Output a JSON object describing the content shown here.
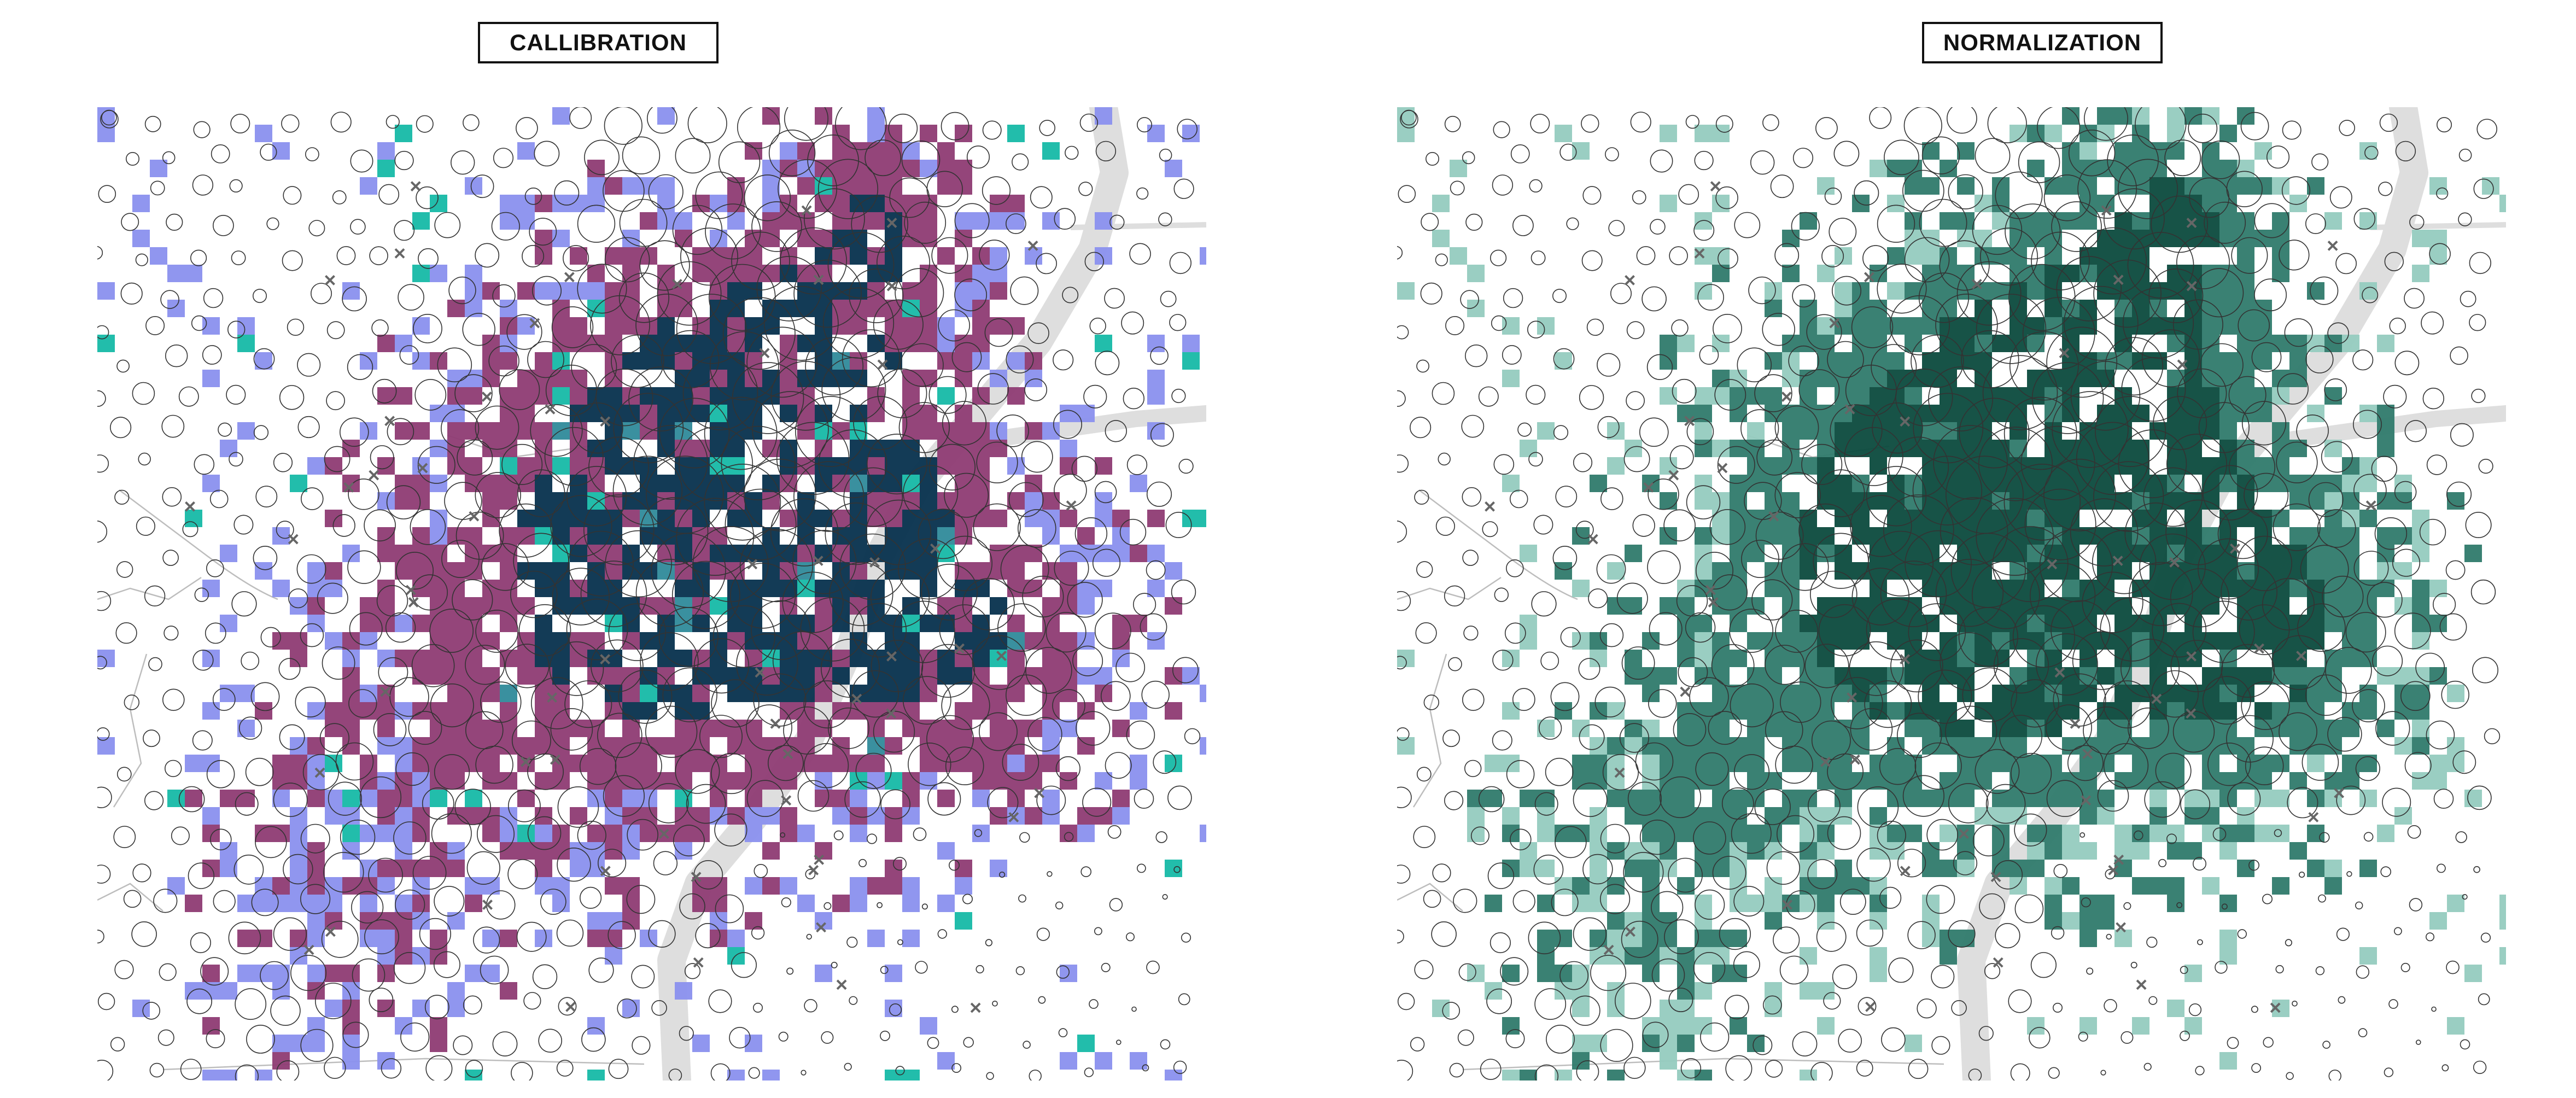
{
  "titles": {
    "left": "CALLIBRATION",
    "right": "NORMALIZATION"
  },
  "panels": {
    "left": {
      "name": "callibration",
      "palette": {
        "low": "#8a90ee",
        "mid": "#8e3b73",
        "high": "#06304d",
        "accent": "#16b9a6",
        "accent_alt": "#2f8a9a"
      },
      "corner_marker": "c4"
    },
    "right": {
      "name": "normalization",
      "palette": {
        "low": "#95cbbf",
        "mid": "#2f7a6c",
        "high": "#0b4a3d"
      },
      "corner_marker": "c4"
    }
  },
  "map_style": {
    "river_color": "#dedede",
    "circle_stroke": "#333333",
    "cross_color": "#666666",
    "road_color": "#bdbdbd"
  }
}
